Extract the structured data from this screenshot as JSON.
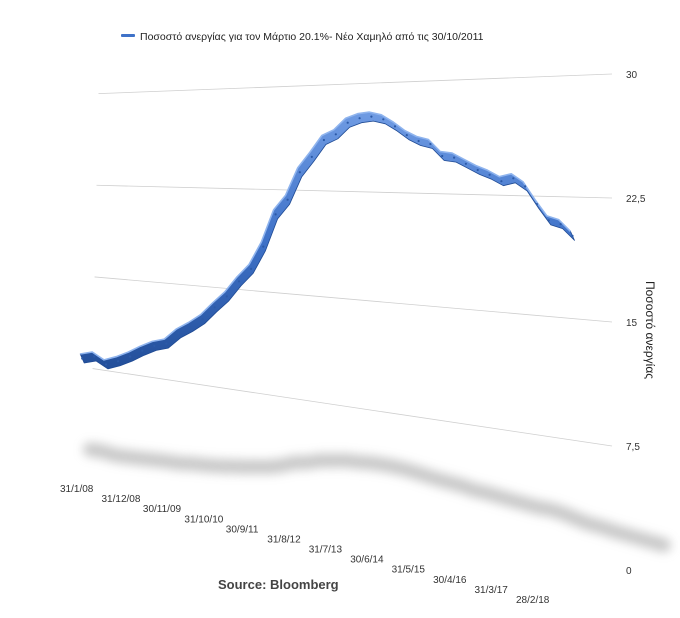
{
  "chart_data": {
    "type": "line",
    "legend": "Ποσοστό ανεργίας για τον Μάρτιο 20.1%- Νέο Χαμηλό από τις 30/10/2011",
    "ylabel": "Ποσοστό ανεργίας",
    "source": "Source: Bloomberg",
    "ylim": [
      0,
      30
    ],
    "y_ticks": [
      "30",
      "22,5",
      "15",
      "7,5",
      "0"
    ],
    "y_tick_values": [
      30,
      22.5,
      15,
      7.5,
      0
    ],
    "x_ticks": [
      "31/1/08",
      "31/12/08",
      "30/11/09",
      "31/10/10",
      "30/9/11",
      "31/8/12",
      "31/7/13",
      "30/6/14",
      "31/5/15",
      "30/4/16",
      "31/3/17",
      "28/2/18"
    ],
    "grid": true,
    "legend_position": "top",
    "series": [
      {
        "name": "Ποσοστό ανεργίας για τον Μάρτιο 20.1%- Νέο Χαμηλό από τις 30/10/2011",
        "color": "#3f72c8",
        "x": [
          "2008-01",
          "2008-03",
          "2008-06",
          "2008-09",
          "2008-12",
          "2009-03",
          "2009-06",
          "2009-09",
          "2009-12",
          "2010-03",
          "2010-06",
          "2010-09",
          "2010-12",
          "2011-03",
          "2011-06",
          "2011-09",
          "2011-12",
          "2012-03",
          "2012-06",
          "2012-09",
          "2012-12",
          "2013-03",
          "2013-06",
          "2013-09",
          "2013-12",
          "2014-03",
          "2014-06",
          "2014-09",
          "2014-12",
          "2015-03",
          "2015-06",
          "2015-09",
          "2015-12",
          "2016-03",
          "2016-06",
          "2016-09",
          "2016-12",
          "2017-03",
          "2017-06",
          "2017-09",
          "2017-12",
          "2018-03"
        ],
        "values": [
          8.2,
          8.5,
          8.0,
          8.4,
          8.9,
          9.5,
          10.0,
          10.3,
          11.2,
          11.8,
          12.5,
          13.5,
          14.4,
          15.6,
          16.6,
          18.3,
          20.7,
          21.8,
          23.8,
          24.9,
          26.1,
          26.5,
          27.3,
          27.6,
          27.7,
          27.5,
          27.0,
          26.4,
          26.0,
          25.8,
          25.0,
          24.9,
          24.5,
          24.1,
          23.8,
          23.4,
          23.6,
          23.1,
          22.0,
          21.0,
          20.8,
          20.1
        ]
      }
    ]
  }
}
